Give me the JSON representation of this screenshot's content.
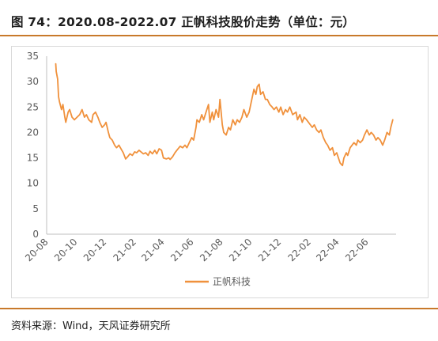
{
  "figure": {
    "title": "图 74：2020.08-2022.07 正帆科技股价走势（单位：元）",
    "source": "资料来源：Wind，天风证券研究所"
  },
  "colors": {
    "accent": "#c8792b",
    "series": "#f0913c",
    "axis": "#bfbfbf",
    "text": "#595959"
  },
  "chart_data": {
    "type": "line",
    "title": "2020.08-2022.07 正帆科技股价走势",
    "unit": "元",
    "xlabel": "",
    "ylabel": "",
    "ylim": [
      0,
      35
    ],
    "yticks": [
      0,
      5,
      10,
      15,
      20,
      25,
      30,
      35
    ],
    "xticks": [
      "20-08",
      "20-10",
      "20-12",
      "21-02",
      "21-04",
      "21-06",
      "21-08",
      "21-10",
      "21-12",
      "22-02",
      "22-04",
      "22-06"
    ],
    "grid": false,
    "legend_position": "bottom",
    "series": [
      {
        "name": "正帆科技",
        "color": "#f0913c",
        "points": [
          [
            "2020-08-20",
            33.5
          ],
          [
            "2020-08-21",
            32.0
          ],
          [
            "2020-08-24",
            30.5
          ],
          [
            "2020-08-26",
            27.0
          ],
          [
            "2020-08-28",
            26.0
          ],
          [
            "2020-09-01",
            24.5
          ],
          [
            "2020-09-04",
            25.5
          ],
          [
            "2020-09-08",
            23.0
          ],
          [
            "2020-09-10",
            22.0
          ],
          [
            "2020-09-15",
            24.0
          ],
          [
            "2020-09-18",
            24.5
          ],
          [
            "2020-09-23",
            23.0
          ],
          [
            "2020-09-28",
            22.5
          ],
          [
            "2020-10-09",
            23.5
          ],
          [
            "2020-10-14",
            24.5
          ],
          [
            "2020-10-19",
            23.0
          ],
          [
            "2020-10-23",
            23.5
          ],
          [
            "2020-10-28",
            22.5
          ],
          [
            "2020-11-03",
            22.0
          ],
          [
            "2020-11-06",
            23.5
          ],
          [
            "2020-11-11",
            24.0
          ],
          [
            "2020-11-16",
            23.0
          ],
          [
            "2020-11-20",
            22.0
          ],
          [
            "2020-11-25",
            21.0
          ],
          [
            "2020-11-30",
            21.5
          ],
          [
            "2020-12-03",
            22.0
          ],
          [
            "2020-12-08",
            20.0
          ],
          [
            "2020-12-11",
            19.0
          ],
          [
            "2020-12-16",
            18.5
          ],
          [
            "2020-12-21",
            17.5
          ],
          [
            "2020-12-25",
            17.0
          ],
          [
            "2020-12-30",
            17.5
          ],
          [
            "2021-01-05",
            16.5
          ],
          [
            "2021-01-08",
            16.0
          ],
          [
            "2021-01-13",
            14.8
          ],
          [
            "2021-01-18",
            15.3
          ],
          [
            "2021-01-22",
            15.8
          ],
          [
            "2021-01-27",
            15.5
          ],
          [
            "2021-02-01",
            16.2
          ],
          [
            "2021-02-05",
            16.0
          ],
          [
            "2021-02-10",
            16.5
          ],
          [
            "2021-02-19",
            15.8
          ],
          [
            "2021-02-24",
            16.0
          ],
          [
            "2021-03-01",
            15.5
          ],
          [
            "2021-03-05",
            16.3
          ],
          [
            "2021-03-10",
            15.8
          ],
          [
            "2021-03-15",
            16.5
          ],
          [
            "2021-03-19",
            15.8
          ],
          [
            "2021-03-24",
            16.8
          ],
          [
            "2021-03-29",
            16.5
          ],
          [
            "2021-04-02",
            15.0
          ],
          [
            "2021-04-08",
            14.8
          ],
          [
            "2021-04-13",
            15.0
          ],
          [
            "2021-04-16",
            14.7
          ],
          [
            "2021-04-21",
            15.2
          ],
          [
            "2021-04-26",
            16.0
          ],
          [
            "2021-04-30",
            16.5
          ],
          [
            "2021-05-07",
            17.3
          ],
          [
            "2021-05-12",
            17.0
          ],
          [
            "2021-05-17",
            17.5
          ],
          [
            "2021-05-21",
            17.0
          ],
          [
            "2021-05-26",
            18.0
          ],
          [
            "2021-05-31",
            19.0
          ],
          [
            "2021-06-04",
            18.5
          ],
          [
            "2021-06-09",
            21.0
          ],
          [
            "2021-06-11",
            22.5
          ],
          [
            "2021-06-16",
            22.0
          ],
          [
            "2021-06-21",
            23.5
          ],
          [
            "2021-06-25",
            22.5
          ],
          [
            "2021-06-30",
            24.0
          ],
          [
            "2021-07-05",
            25.5
          ],
          [
            "2021-07-08",
            22.0
          ],
          [
            "2021-07-13",
            24.0
          ],
          [
            "2021-07-16",
            22.5
          ],
          [
            "2021-07-21",
            24.5
          ],
          [
            "2021-07-26",
            23.0
          ],
          [
            "2021-07-29",
            26.5
          ],
          [
            "2021-08-03",
            21.5
          ],
          [
            "2021-08-06",
            20.0
          ],
          [
            "2021-08-11",
            19.5
          ],
          [
            "2021-08-16",
            21.0
          ],
          [
            "2021-08-20",
            20.5
          ],
          [
            "2021-08-25",
            22.5
          ],
          [
            "2021-08-30",
            21.5
          ],
          [
            "2021-09-03",
            22.5
          ],
          [
            "2021-09-08",
            22.0
          ],
          [
            "2021-09-13",
            23.0
          ],
          [
            "2021-09-17",
            24.5
          ],
          [
            "2021-09-23",
            23.0
          ],
          [
            "2021-09-28",
            24.0
          ],
          [
            "2021-10-08",
            28.5
          ],
          [
            "2021-10-12",
            27.5
          ],
          [
            "2021-10-15",
            29.0
          ],
          [
            "2021-10-19",
            29.5
          ],
          [
            "2021-10-22",
            27.5
          ],
          [
            "2021-10-27",
            28.0
          ],
          [
            "2021-11-01",
            26.5
          ],
          [
            "2021-11-05",
            26.5
          ],
          [
            "2021-11-10",
            25.5
          ],
          [
            "2021-11-15",
            25.0
          ],
          [
            "2021-11-19",
            24.5
          ],
          [
            "2021-11-24",
            25.0
          ],
          [
            "2021-11-29",
            24.0
          ],
          [
            "2021-12-03",
            25.0
          ],
          [
            "2021-12-08",
            23.5
          ],
          [
            "2021-12-13",
            24.5
          ],
          [
            "2021-12-17",
            24.0
          ],
          [
            "2021-12-22",
            25.0
          ],
          [
            "2021-12-28",
            23.5
          ],
          [
            "2022-01-04",
            24.0
          ],
          [
            "2022-01-07",
            22.5
          ],
          [
            "2022-01-12",
            23.5
          ],
          [
            "2022-01-17",
            22.0
          ],
          [
            "2022-01-21",
            23.0
          ],
          [
            "2022-01-26",
            22.5
          ],
          [
            "2022-02-07",
            21.0
          ],
          [
            "2022-02-11",
            21.5
          ],
          [
            "2022-02-16",
            20.5
          ],
          [
            "2022-02-21",
            20.0
          ],
          [
            "2022-02-25",
            20.5
          ],
          [
            "2022-03-02",
            19.0
          ],
          [
            "2022-03-07",
            18.0
          ],
          [
            "2022-03-11",
            17.5
          ],
          [
            "2022-03-16",
            16.5
          ],
          [
            "2022-03-21",
            17.0
          ],
          [
            "2022-03-25",
            15.5
          ],
          [
            "2022-03-30",
            16.0
          ],
          [
            "2022-04-06",
            14.0
          ],
          [
            "2022-04-11",
            13.5
          ],
          [
            "2022-04-14",
            15.0
          ],
          [
            "2022-04-19",
            16.0
          ],
          [
            "2022-04-22",
            15.5
          ],
          [
            "2022-04-27",
            17.0
          ],
          [
            "2022-05-05",
            18.0
          ],
          [
            "2022-05-10",
            17.5
          ],
          [
            "2022-05-13",
            18.5
          ],
          [
            "2022-05-18",
            18.0
          ],
          [
            "2022-05-23",
            18.5
          ],
          [
            "2022-05-27",
            19.5
          ],
          [
            "2022-06-01",
            20.5
          ],
          [
            "2022-06-06",
            19.5
          ],
          [
            "2022-06-10",
            20.0
          ],
          [
            "2022-06-15",
            19.5
          ],
          [
            "2022-06-20",
            18.5
          ],
          [
            "2022-06-24",
            19.0
          ],
          [
            "2022-06-29",
            18.5
          ],
          [
            "2022-07-04",
            17.5
          ],
          [
            "2022-07-08",
            18.5
          ],
          [
            "2022-07-13",
            20.0
          ],
          [
            "2022-07-18",
            19.5
          ],
          [
            "2022-07-21",
            21.0
          ],
          [
            "2022-07-25",
            22.5
          ]
        ]
      }
    ]
  }
}
